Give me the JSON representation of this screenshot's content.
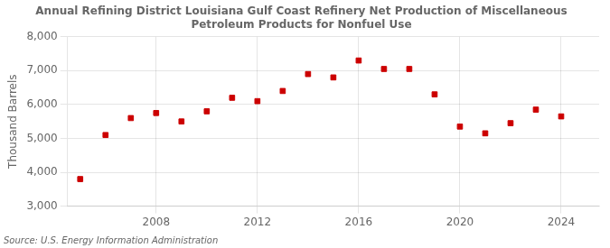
{
  "chart_data": {
    "type": "scatter",
    "title": "Annual Refining District Louisiana Gulf Coast Refinery Net Production of Miscellaneous\nPetroleum Products for Nonfuel Use",
    "y_label": "Thousand Barrels",
    "annotations": [
      "Source: U.S. Energy Information Administration"
    ],
    "x": [
      2005,
      2006,
      2007,
      2008,
      2009,
      2010,
      2011,
      2012,
      2013,
      2014,
      2015,
      2016,
      2017,
      2018,
      2019,
      2020,
      2021,
      2022,
      2023,
      2024
    ],
    "values": [
      3800,
      5100,
      5600,
      5750,
      5500,
      5800,
      6200,
      6100,
      6400,
      6900,
      6800,
      7300,
      7050,
      7050,
      6300,
      5350,
      5150,
      5450,
      5850,
      5650
    ],
    "color": "#CC0000",
    "marker": "square",
    "xlim": [
      2004.5,
      2025.5
    ],
    "xticks": [
      2008,
      2012,
      2016,
      2020,
      2024
    ],
    "ylim": [
      3000,
      8000
    ],
    "yticks": [
      {
        "value": 3000,
        "label": "3,000"
      },
      {
        "value": 4000,
        "label": "4,000"
      },
      {
        "value": 5000,
        "label": "5,000"
      },
      {
        "value": 6000,
        "label": "6,000"
      },
      {
        "value": 7000,
        "label": "7,000"
      },
      {
        "value": 8000,
        "label": "8,000"
      }
    ],
    "grid": true
  }
}
